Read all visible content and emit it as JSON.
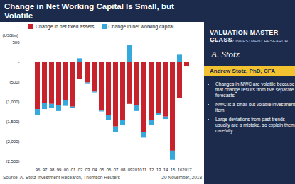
{
  "chart_data": {
    "type": "bar",
    "stacked": true,
    "title": "Change in Net Working Capital Is Small, but Volatile",
    "y_label": "(US$bn)",
    "categories": [
      "96",
      "97",
      "98",
      "99",
      "00",
      "01",
      "02",
      "03",
      "04",
      "05",
      "06",
      "07",
      "08",
      "09",
      "2010",
      "11",
      "12",
      "13",
      "14",
      "15",
      "16",
      "2017"
    ],
    "series": [
      {
        "name": "Change in net fixed assets",
        "color": "#c8232c",
        "values": [
          -1180,
          -1030,
          -1050,
          -1080,
          -950,
          -1120,
          -420,
          -510,
          -740,
          -1220,
          -1330,
          -1620,
          -1460,
          -1050,
          -1080,
          -1750,
          -1460,
          -1270,
          -1370,
          -2230,
          -900,
          -90
        ]
      },
      {
        "name": "Change in net working capital",
        "color": "#35a8dc",
        "values": [
          -150,
          -150,
          -100,
          -150,
          -150,
          -30,
          100,
          -20,
          -20,
          -20,
          -130,
          -130,
          -130,
          440,
          -150,
          -150,
          -120,
          -60,
          -60,
          -230,
          190,
          0
        ]
      }
    ],
    "ylim": [
      -2500,
      500
    ],
    "yticks": [
      500,
      {
        "value": 0,
        "label": "-"
      },
      {
        "value": -500,
        "label": "(500)"
      },
      {
        "value": -1000,
        "label": "(1,000)"
      },
      {
        "value": -1500,
        "label": "(1,500)"
      },
      {
        "value": -2000,
        "label": "(2,000)"
      },
      {
        "value": -2500,
        "label": "(2,500)"
      }
    ],
    "grid": false,
    "legend": "top",
    "annotations": [
      "Source: A. Stotz Investment Research, Thomson Reuters",
      "20 November, 2018"
    ]
  },
  "sidebar": {
    "title": "VALUATION MASTER CLASS",
    "byline": "by A. STOTZ INVESTMENT RESEARCH",
    "signature": "A. Stotz",
    "name": "Andrew Stotz, PhD, CFA",
    "bullets": [
      "Changes in NWC are volatile because that change results from five separate forecasts",
      "NWC is a small but volatile investment item",
      "Large deviations from past trends usually are a mistake, so explain them carefully"
    ]
  }
}
